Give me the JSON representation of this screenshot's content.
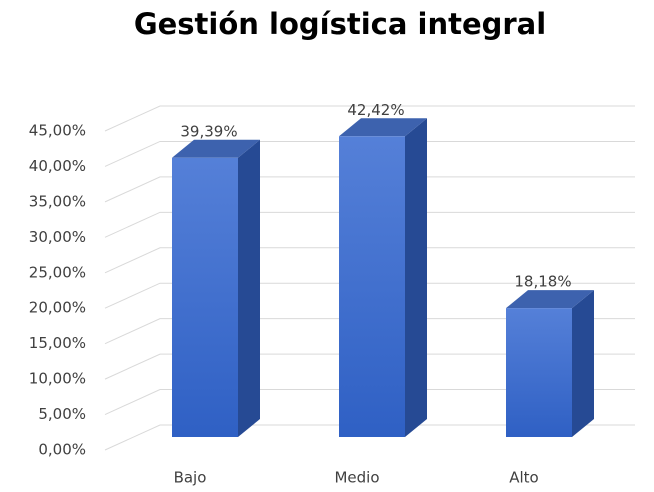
{
  "chart_data": {
    "type": "bar3d",
    "title": "Gestión logística integral",
    "categories": [
      "Bajo",
      "Medio",
      "Alto"
    ],
    "values": [
      39.39,
      42.42,
      18.18
    ],
    "value_labels": [
      "39,39%",
      "42,42%",
      "18,18%"
    ],
    "color": "#3a6bd0",
    "ylim": [
      0,
      45
    ],
    "yticks": [
      {
        "value": 0,
        "label": "0,00%"
      },
      {
        "value": 5,
        "label": "5,00%"
      },
      {
        "value": 10,
        "label": "10,00%"
      },
      {
        "value": 15,
        "label": "15,00%"
      },
      {
        "value": 20,
        "label": "20,00%"
      },
      {
        "value": 25,
        "label": "25,00%"
      },
      {
        "value": 30,
        "label": "30,00%"
      },
      {
        "value": 35,
        "label": "35,00%"
      },
      {
        "value": 40,
        "label": "40,00%"
      },
      {
        "value": 45,
        "label": "45,00%"
      }
    ],
    "grid": true
  }
}
